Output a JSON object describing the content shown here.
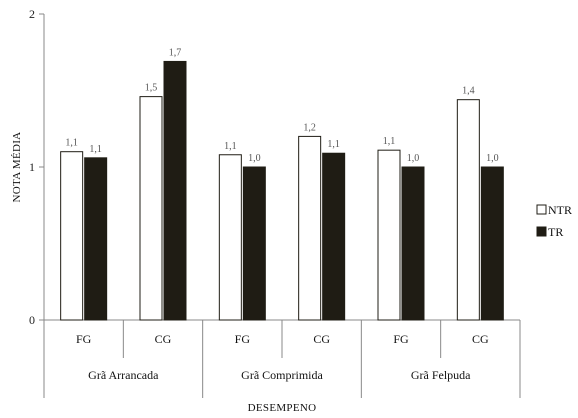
{
  "chart_data": {
    "type": "bar",
    "title": "",
    "xlabel": "DESEMPENO",
    "ylabel": "NOTA MÉDIA",
    "ylim": [
      0,
      2
    ],
    "yticks": [
      "0",
      "1",
      "2"
    ],
    "groups": [
      {
        "label": "Grã Arrancada",
        "categories": [
          "FG",
          "CG"
        ]
      },
      {
        "label": "Grã Comprimida",
        "categories": [
          "FG",
          "CG"
        ]
      },
      {
        "label": "Grã Felpuda",
        "categories": [
          "FG",
          "CG"
        ]
      }
    ],
    "categories": [
      "FG",
      "CG",
      "FG",
      "CG",
      "FG",
      "CG"
    ],
    "series": [
      {
        "name": "NTR",
        "color": "#ffffff",
        "values": [
          1.1,
          1.46,
          1.08,
          1.2,
          1.11,
          1.44
        ],
        "labels": [
          "1,1",
          "1,5",
          "1,1",
          "1,2",
          "1,1",
          "1,4"
        ]
      },
      {
        "name": "TR",
        "color": "#1f1c14",
        "values": [
          1.06,
          1.69,
          1.0,
          1.09,
          1.0,
          1.0
        ],
        "labels": [
          "1,1",
          "1,7",
          "1,0",
          "1,1",
          "1,0",
          "1,0"
        ]
      }
    ],
    "legend": {
      "position": "right"
    },
    "grid": false
  }
}
